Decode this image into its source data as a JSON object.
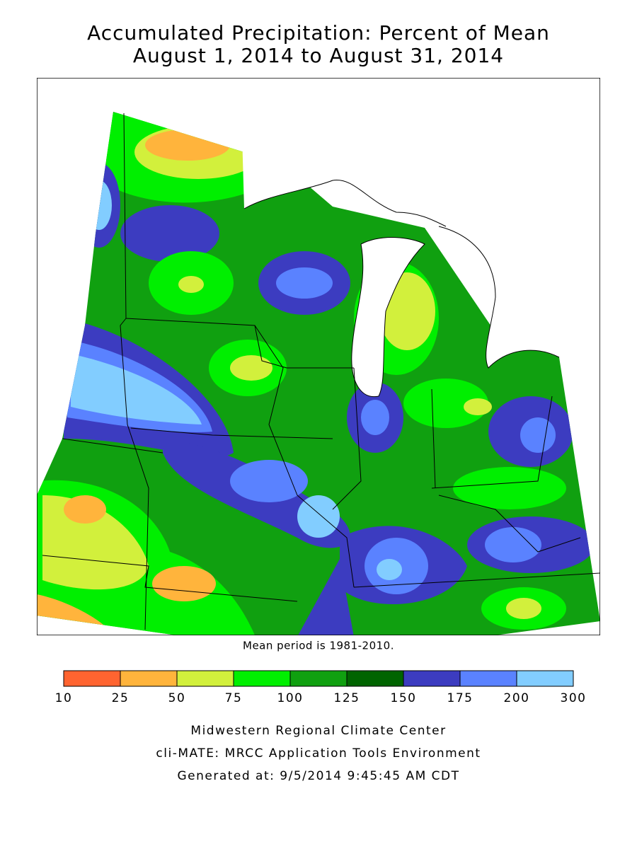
{
  "header": {
    "title": "Accumulated Precipitation: Percent of Mean",
    "subtitle": "August 1, 2014 to August 31, 2014"
  },
  "map": {
    "note": "Mean period is 1981-2010."
  },
  "legend": {
    "ticks": [
      10,
      25,
      50,
      75,
      100,
      125,
      150,
      175,
      200,
      300
    ],
    "colors": [
      "#ff6430",
      "#ffb43c",
      "#d2f03c",
      "#00ef00",
      "#10a010",
      "#006400",
      "#3c3cc0",
      "#5a82ff",
      "#82cdff"
    ]
  },
  "footer": {
    "lines": [
      "Midwestern Regional Climate Center",
      "cli-MATE: MRCC Application Tools Environment",
      "Generated at: 9/5/2014 9:45:45 AM CDT"
    ]
  }
}
